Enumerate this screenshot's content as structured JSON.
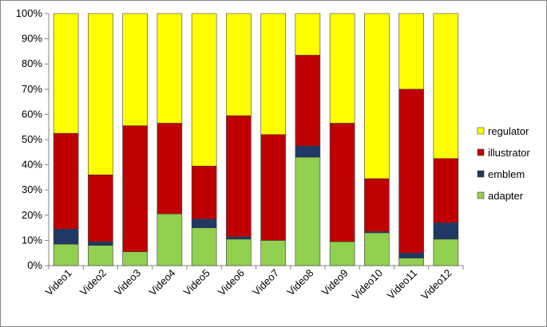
{
  "chart_data": {
    "type": "bar",
    "stacked": true,
    "percent_stacked": true,
    "categories": [
      "Video1",
      "Video2",
      "Video3",
      "Video4",
      "Video5",
      "Video6",
      "Video7",
      "Video8",
      "Video9",
      "Video10",
      "Video11",
      "Video12"
    ],
    "series": [
      {
        "name": "adapter",
        "color": "#92D050",
        "values": [
          8.5,
          8.0,
          5.5,
          20.5,
          15.0,
          10.5,
          10.0,
          43.0,
          9.5,
          13.0,
          3.0,
          10.5
        ]
      },
      {
        "name": "emblem",
        "color": "#1F3864",
        "values": [
          6.0,
          1.5,
          0.0,
          0.0,
          3.5,
          1.0,
          0.0,
          4.5,
          0.0,
          0.5,
          2.0,
          6.5
        ]
      },
      {
        "name": "illustrator",
        "color": "#C00000",
        "values": [
          38.0,
          26.5,
          50.0,
          36.0,
          21.0,
          48.0,
          42.0,
          36.0,
          47.0,
          21.0,
          65.0,
          25.5
        ]
      },
      {
        "name": "regulator",
        "color": "#FFFF00",
        "values": [
          47.5,
          64.0,
          44.5,
          43.5,
          60.5,
          40.5,
          48.0,
          16.5,
          43.5,
          65.5,
          30.0,
          57.5
        ]
      }
    ],
    "legend_order": [
      "regulator",
      "illustrator",
      "emblem",
      "adapter"
    ],
    "yticks": [
      "0%",
      "10%",
      "20%",
      "30%",
      "40%",
      "50%",
      "60%",
      "70%",
      "80%",
      "90%",
      "100%"
    ],
    "ylim": [
      0,
      100
    ],
    "title": "",
    "xlabel": "",
    "ylabel": "",
    "grid": false,
    "legend_position": "right"
  }
}
